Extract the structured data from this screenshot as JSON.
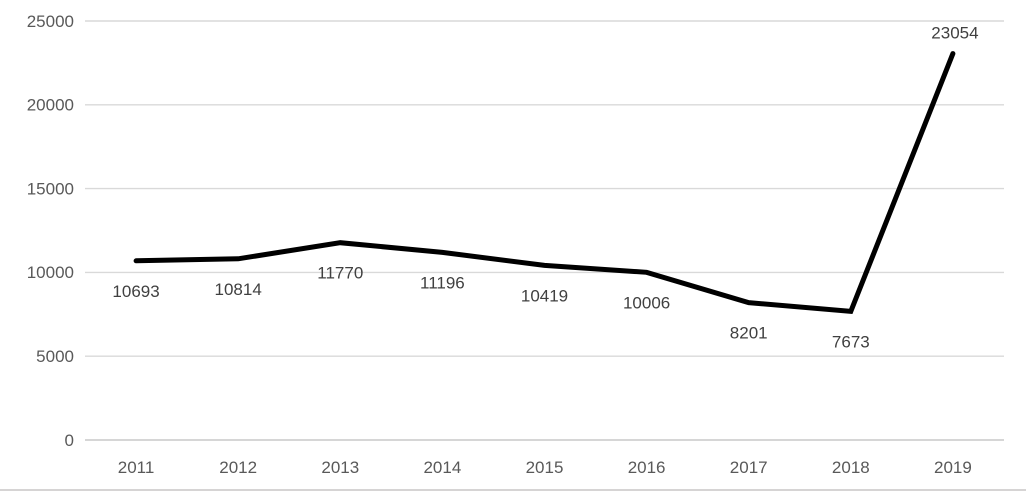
{
  "chart_data": {
    "type": "line",
    "title": "",
    "xlabel": "",
    "ylabel": "",
    "categories": [
      "2011",
      "2012",
      "2013",
      "2014",
      "2015",
      "2016",
      "2017",
      "2018",
      "2019"
    ],
    "series": [
      {
        "name": "",
        "values": [
          10693,
          10814,
          11770,
          11196,
          10419,
          10006,
          8201,
          7673,
          23054
        ]
      }
    ],
    "data_labels": [
      "10693",
      "10814",
      "11770",
      "11196",
      "10419",
      "10006",
      "8201",
      "7673",
      "23054"
    ],
    "data_label_side": [
      "below",
      "below",
      "below",
      "below",
      "below",
      "below",
      "below",
      "below",
      "above"
    ],
    "ylim": [
      0,
      25000
    ],
    "y_ticks": [
      0,
      5000,
      10000,
      15000,
      20000,
      25000
    ],
    "y_tick_labels": [
      "0",
      "5000",
      "10000",
      "15000",
      "20000",
      "25000"
    ],
    "grid": "horizontal-only",
    "legend": "none",
    "colors": {
      "line": "#000000",
      "gridline": "#d9d9d9",
      "axis_line": "#c9c9c9",
      "tick_label": "#595959",
      "data_label": "#404040",
      "background": "#ffffff"
    },
    "line_width": 5
  }
}
